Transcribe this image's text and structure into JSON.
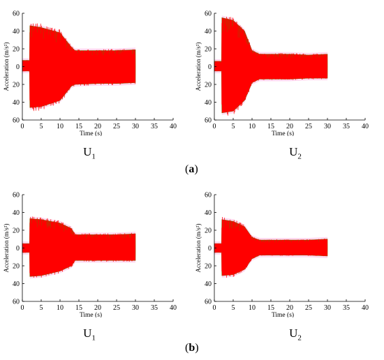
{
  "figure": {
    "rows": [
      {
        "label": "a",
        "panels": [
          "U1",
          "U2"
        ]
      },
      {
        "label": "b",
        "panels": [
          "U1",
          "U2"
        ]
      }
    ]
  },
  "labels": {
    "u1_text": "U",
    "u1_sub": "1",
    "u2_text": "U",
    "u2_sub": "2"
  },
  "colors": {
    "envelope": "#ff0000",
    "edge": "#8b5a00",
    "tint": "#ffd9f0",
    "axis": "#000000"
  },
  "chart_data": [
    {
      "type": "area",
      "panel": "a-U1",
      "xlabel": "Time (s)",
      "ylabel": "Acceleration (m/s²)",
      "xlim": [
        0,
        40
      ],
      "ylim": [
        -60,
        60
      ],
      "x_ticks": [
        0,
        5,
        10,
        15,
        20,
        25,
        30,
        35,
        40
      ],
      "y_ticks": [
        60,
        40,
        20,
        0,
        20,
        40,
        60
      ],
      "series": [
        {
          "x": [
            0,
            1.9,
            2.0,
            5,
            10,
            13,
            14,
            20,
            25,
            30,
            30.01
          ],
          "upper": [
            7,
            7,
            46,
            44,
            38,
            22,
            18,
            18,
            18,
            19,
            0
          ],
          "lower": [
            -5,
            -5,
            -46,
            -45,
            -38,
            -22,
            -20,
            -19,
            -19,
            -18,
            0
          ]
        }
      ]
    },
    {
      "type": "area",
      "panel": "a-U2",
      "xlabel": "Time (s)",
      "ylabel": "Acceleration (m/s²)",
      "xlim": [
        0,
        40
      ],
      "ylim": [
        -60,
        60
      ],
      "x_ticks": [
        0,
        5,
        10,
        15,
        20,
        25,
        30,
        35,
        40
      ],
      "y_ticks": [
        60,
        40,
        20,
        0,
        20,
        40,
        60
      ],
      "series": [
        {
          "x": [
            0,
            1.9,
            2.0,
            5,
            8,
            10,
            12,
            20,
            25,
            30,
            30.01
          ],
          "upper": [
            6,
            6,
            55,
            52,
            40,
            18,
            14,
            14,
            13,
            14,
            0
          ],
          "lower": [
            -5,
            -5,
            -52,
            -50,
            -38,
            -18,
            -14,
            -14,
            -13,
            -13,
            0
          ]
        }
      ]
    },
    {
      "type": "area",
      "panel": "b-U1",
      "xlabel": "Time (s)",
      "ylabel": "Acceleration (m/s²)",
      "xlim": [
        0,
        40
      ],
      "ylim": [
        -60,
        60
      ],
      "x_ticks": [
        0,
        5,
        10,
        15,
        20,
        25,
        30,
        35,
        40
      ],
      "y_ticks": [
        60,
        40,
        20,
        0,
        20,
        40,
        60
      ],
      "series": [
        {
          "x": [
            0,
            1.9,
            2.0,
            5,
            10,
            13,
            14,
            20,
            25,
            30,
            30.01
          ],
          "upper": [
            5,
            5,
            33,
            32,
            28,
            22,
            15,
            15,
            15,
            16,
            0
          ],
          "lower": [
            -5,
            -5,
            -32,
            -31,
            -26,
            -20,
            -14,
            -14,
            -14,
            -14,
            0
          ]
        }
      ]
    },
    {
      "type": "area",
      "panel": "b-U2",
      "xlabel": "Time (s)",
      "ylabel": "Acceleration (m/s²)",
      "xlim": [
        0,
        40
      ],
      "ylim": [
        -60,
        60
      ],
      "x_ticks": [
        0,
        5,
        10,
        15,
        20,
        25,
        30,
        35,
        40
      ],
      "y_ticks": [
        60,
        40,
        20,
        0,
        20,
        40,
        60
      ],
      "series": [
        {
          "x": [
            0,
            1.9,
            2.0,
            5,
            8,
            10,
            12,
            20,
            25,
            30,
            30.01
          ],
          "upper": [
            5,
            5,
            32,
            30,
            24,
            12,
            9,
            9,
            9,
            10,
            0
          ],
          "lower": [
            -5,
            -5,
            -31,
            -30,
            -24,
            -12,
            -8,
            -8,
            -8,
            -9,
            0
          ]
        }
      ]
    }
  ]
}
